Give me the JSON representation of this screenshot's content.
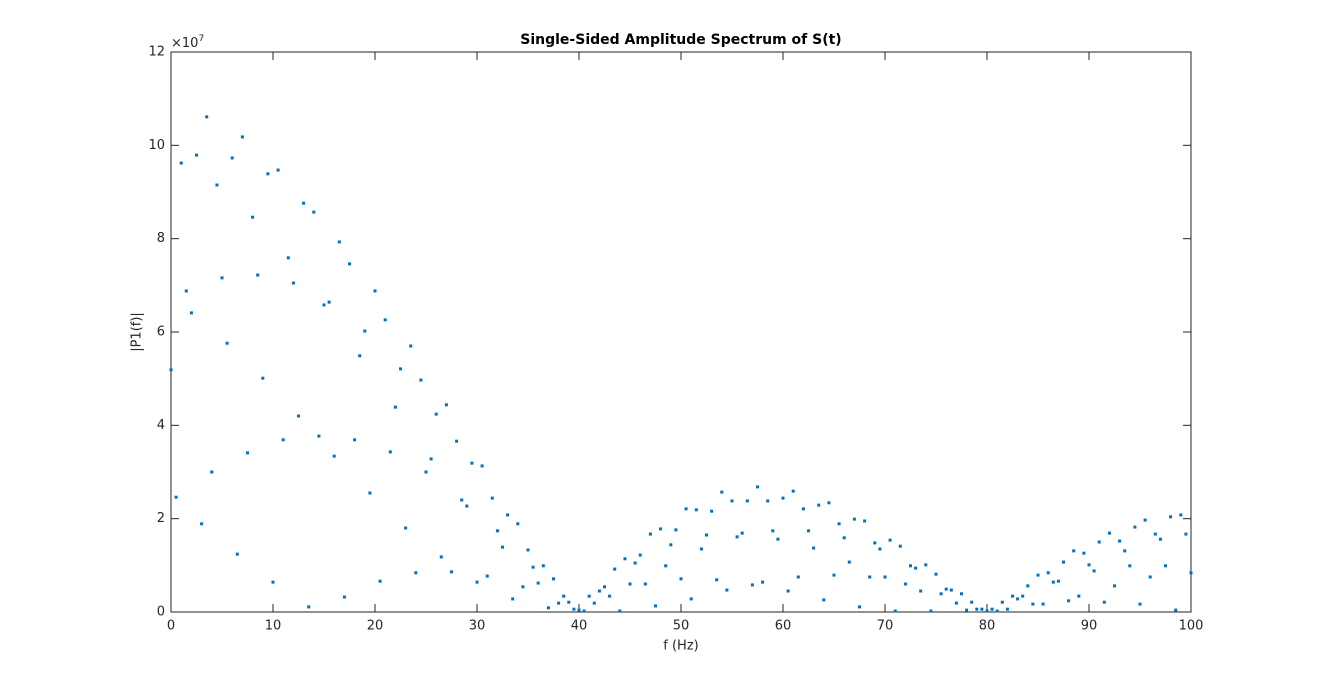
{
  "chart_data": {
    "type": "scatter",
    "title": "Single-Sided Amplitude Spectrum of S(t)",
    "x_label": "f (Hz)",
    "y_label": "|P1(f)|",
    "y_multiplier": {
      "base": "×10",
      "power": "7"
    },
    "xlim": [
      0,
      100
    ],
    "ylim": [
      0,
      12
    ],
    "xticks": [
      0,
      10,
      20,
      30,
      40,
      50,
      60,
      70,
      80,
      90,
      100
    ],
    "yticks": [
      0,
      2,
      4,
      6,
      8,
      10,
      12
    ],
    "color": "#0072bd",
    "x": [
      0,
      0.5,
      1,
      1.5,
      2,
      2.5,
      3,
      3.5,
      4,
      4.5,
      5,
      5.5,
      6,
      6.5,
      7,
      7.5,
      8,
      8.5,
      9,
      9.5,
      10,
      10.5,
      11,
      11.5,
      12,
      12.5,
      13,
      13.5,
      14,
      14.5,
      15,
      15.5,
      16,
      16.5,
      17,
      17.5,
      18,
      18.5,
      19,
      19.5,
      20,
      20.5,
      21,
      21.5,
      22,
      22.5,
      23,
      23.5,
      24,
      24.5,
      25,
      25.5,
      26,
      26.5,
      27,
      27.5,
      28,
      28.5,
      29,
      29.5,
      30,
      30.5,
      31,
      31.5,
      32,
      32.5,
      33,
      33.5,
      34,
      34.5,
      35,
      35.5,
      36,
      36.5,
      37,
      37.5,
      38,
      38.5,
      39,
      39.5,
      40,
      40.5,
      41,
      41.5,
      42,
      42.5,
      43,
      43.5,
      44,
      44.5,
      45,
      45.5,
      46,
      46.5,
      47,
      47.5,
      48,
      48.5,
      49,
      49.5,
      50,
      50.5,
      51,
      51.5,
      52,
      52.5,
      53,
      53.5,
      54,
      54.5,
      55,
      55.5,
      56,
      56.5,
      57,
      57.5,
      58,
      58.5,
      59,
      59.5,
      60,
      60.5,
      61,
      61.5,
      62,
      62.5,
      63,
      63.5,
      64,
      64.5,
      65,
      65.5,
      66,
      66.5,
      67,
      67.5,
      68,
      68.5,
      69,
      69.5,
      70,
      70.5,
      71,
      71.5,
      72,
      72.5,
      73,
      73.5,
      74,
      74.5,
      75,
      75.5,
      76,
      76.5,
      77,
      77.5,
      78,
      78.5,
      79,
      79.5,
      80,
      80.5,
      81,
      81.5,
      82,
      82.5,
      83,
      83.5,
      84,
      84.5,
      85,
      85.5,
      86,
      86.5,
      87,
      87.5,
      88,
      88.5,
      89,
      89.5,
      90,
      90.5,
      91,
      91.5,
      92,
      92.5,
      93,
      93.5,
      94,
      94.5,
      95,
      95.5,
      96,
      96.5,
      97,
      97.5,
      98,
      98.5,
      99,
      99.5,
      100
    ],
    "values": [
      5.19,
      2.46,
      9.62,
      6.88,
      6.41,
      9.79,
      1.89,
      10.61,
      3.0,
      9.15,
      7.16,
      5.76,
      9.73,
      1.24,
      10.18,
      3.41,
      8.46,
      7.22,
      5.01,
      9.39,
      0.64,
      9.47,
      3.69,
      7.59,
      7.05,
      4.2,
      8.76,
      0.11,
      8.57,
      3.77,
      6.58,
      6.64,
      3.34,
      7.93,
      0.32,
      7.46,
      3.69,
      5.49,
      6.02,
      2.55,
      6.88,
      0.66,
      6.26,
      3.43,
      4.39,
      5.21,
      1.8,
      5.7,
      0.84,
      4.97,
      3.0,
      3.28,
      4.24,
      1.18,
      4.44,
      0.86,
      3.66,
      2.4,
      2.27,
      3.19,
      0.64,
      3.13,
      0.77,
      2.44,
      1.74,
      1.39,
      2.08,
      0.28,
      1.89,
      0.54,
      1.33,
      0.96,
      0.62,
      0.99,
      0.09,
      0.71,
      0.19,
      0.34,
      0.21,
      0.06,
      0.04,
      0.02,
      0.34,
      0.19,
      0.45,
      0.54,
      0.34,
      0.92,
      0.02,
      1.14,
      0.6,
      1.05,
      1.22,
      0.6,
      1.67,
      0.13,
      1.78,
      0.99,
      1.44,
      1.76,
      0.71,
      2.21,
      0.28,
      2.19,
      1.35,
      1.65,
      2.16,
      0.69,
      2.57,
      0.47,
      2.38,
      1.61,
      1.69,
      2.38,
      0.58,
      2.68,
      0.64,
      2.38,
      1.74,
      1.56,
      2.44,
      0.45,
      2.59,
      0.75,
      2.21,
      1.74,
      1.37,
      2.29,
      0.26,
      2.34,
      0.79,
      1.89,
      1.59,
      1.07,
      1.99,
      0.11,
      1.95,
      0.75,
      1.48,
      1.35,
      0.75,
      1.54,
      0.02,
      1.41,
      0.6,
      0.99,
      0.94,
      0.45,
      1.01,
      0.02,
      0.81,
      0.39,
      0.49,
      0.47,
      0.19,
      0.39,
      0.04,
      0.21,
      0.06,
      0.06,
      0.02,
      0.06,
      0.02,
      0.21,
      0.06,
      0.34,
      0.28,
      0.34,
      0.56,
      0.17,
      0.79,
      0.17,
      0.84,
      0.64,
      0.66,
      1.07,
      0.24,
      1.31,
      0.34,
      1.26,
      1.01,
      0.88,
      1.5,
      0.21,
      1.69,
      0.56,
      1.52,
      1.31,
      0.99,
      1.82,
      0.17,
      1.97,
      0.75,
      1.67,
      1.56,
      0.99,
      2.04,
      0.04,
      2.08,
      1.67,
      0.84
    ]
  }
}
